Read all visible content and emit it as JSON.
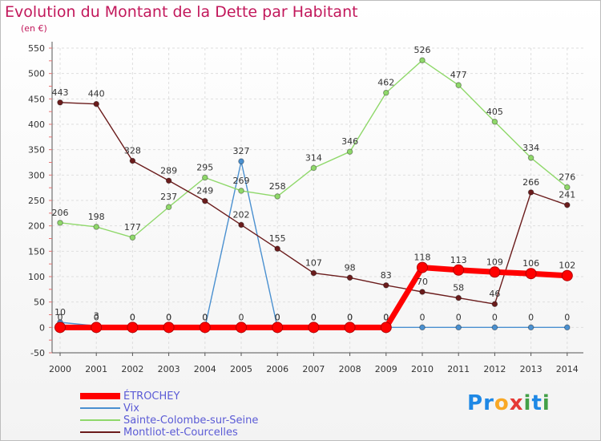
{
  "title": "Evolution du Montant de la Dette par Habitant",
  "subtitle": "(en €)",
  "logo": {
    "text": "Proxiti",
    "colors": [
      "#1e88e5",
      "#1e88e5",
      "#f9a825",
      "#e53935",
      "#43a047",
      "#1e88e5",
      "#43a047"
    ]
  },
  "chart_data": {
    "type": "line",
    "title": "Evolution du Montant de la Dette par Habitant",
    "ylabel": "(en €)",
    "xlabel": "",
    "x": [
      2000,
      2001,
      2002,
      2003,
      2004,
      2005,
      2006,
      2007,
      2008,
      2009,
      2010,
      2011,
      2012,
      2013,
      2014
    ],
    "ylim": [
      -50,
      550
    ],
    "yticks": [
      -50,
      0,
      50,
      100,
      150,
      200,
      250,
      300,
      350,
      400,
      450,
      500,
      550
    ],
    "grid": true,
    "legend_position": "bottom-left",
    "series": [
      {
        "name": "ÉTROCHEY",
        "color": "#ff0000",
        "emphasis": true,
        "values": [
          0,
          0,
          0,
          0,
          0,
          0,
          0,
          0,
          0,
          0,
          118,
          113,
          109,
          106,
          102
        ]
      },
      {
        "name": "Vix",
        "color": "#4a90d0",
        "values": [
          10,
          3,
          0,
          0,
          0,
          327,
          0,
          0,
          0,
          0,
          0,
          0,
          0,
          0,
          0
        ]
      },
      {
        "name": "Sainte-Colombe-sur-Seine",
        "color": "#8fd86a",
        "values": [
          206,
          198,
          177,
          237,
          295,
          269,
          258,
          314,
          346,
          462,
          526,
          477,
          405,
          334,
          276
        ]
      },
      {
        "name": "Montliot-et-Courcelles",
        "color": "#6b1c1c",
        "values": [
          443,
          440,
          328,
          289,
          249,
          202,
          155,
          107,
          98,
          83,
          70,
          58,
          46,
          266,
          241
        ]
      }
    ]
  }
}
